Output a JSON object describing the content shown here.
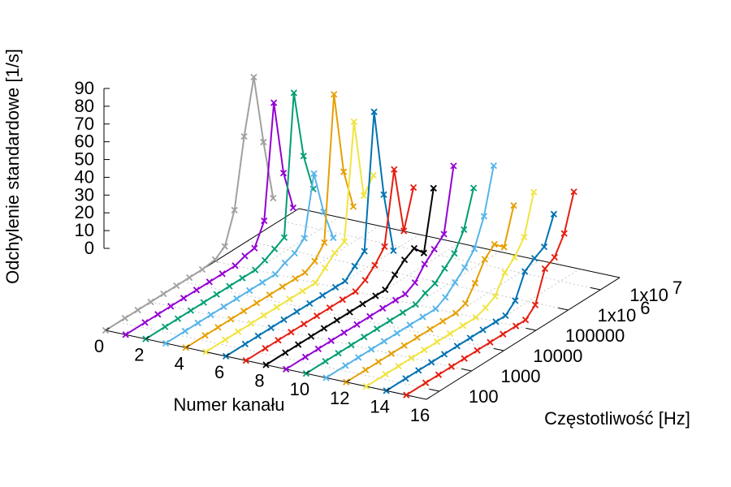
{
  "chart_data": {
    "type": "line",
    "projection": "3d",
    "title": "",
    "xlabel": "Numer kanału",
    "ylabel": "Częstotliwość [Hz]",
    "zlabel": "Odchylenie standardowe [1/s]",
    "x_ticks": [
      "0",
      "2",
      "4",
      "6",
      "8",
      "10",
      "12",
      "14",
      "16"
    ],
    "y_ticks": [
      "100",
      "1000",
      "10000",
      "100000",
      "1x10^6",
      "1x10^7"
    ],
    "y_tick_base": [
      "100",
      "1000",
      "10000",
      "100000",
      "1x10",
      "1x10"
    ],
    "y_tick_exp": [
      "",
      "",
      "",
      "",
      "6",
      "7"
    ],
    "z_ticks": [
      "0",
      "10",
      "20",
      "30",
      "40",
      "50",
      "60",
      "70",
      "80",
      "90"
    ],
    "xlim": [
      0,
      16
    ],
    "ylim_log10": [
      1.6,
      7.6
    ],
    "zlim": [
      0,
      90
    ],
    "grid": true,
    "legend": "none",
    "frequency_points_log10": [
      1.6,
      2.2,
      2.6,
      3.0,
      3.4,
      3.8,
      4.2,
      4.6,
      5.0,
      5.3,
      5.6,
      5.9,
      6.2,
      6.5,
      6.8
    ],
    "series": [
      {
        "channel": 0,
        "color": "#a0a0a0",
        "values": [
          0,
          0,
          0,
          0,
          0,
          0,
          0,
          0,
          1,
          5,
          22,
          60,
          90,
          50,
          15
        ]
      },
      {
        "channel": 1,
        "color": "#9400d3",
        "values": [
          0,
          0,
          0,
          0,
          0,
          0,
          0,
          0,
          0,
          2,
          3,
          15,
          78,
          35,
          12
        ]
      },
      {
        "channel": 2,
        "color": "#009e73",
        "values": [
          0,
          0,
          0,
          0,
          0,
          0,
          0,
          0,
          0,
          2,
          5,
          8,
          86,
          47,
          25
        ]
      },
      {
        "channel": 3,
        "color": "#56b4e9",
        "values": [
          0,
          0,
          0,
          0,
          0,
          0,
          0,
          0,
          0,
          3,
          5,
          10,
          43,
          18,
          0
        ]
      },
      {
        "channel": 4,
        "color": "#e69f00",
        "values": [
          0,
          0,
          0,
          0,
          0,
          0,
          0,
          0,
          0,
          0,
          3,
          10,
          90,
          43,
          20
        ]
      },
      {
        "channel": 5,
        "color": "#f0e442",
        "values": [
          0,
          0,
          0,
          0,
          0,
          0,
          0,
          0,
          0,
          5,
          10,
          13,
          77,
          32,
          40
        ]
      },
      {
        "channel": 6,
        "color": "#0072b2",
        "values": [
          0,
          0,
          0,
          0,
          0,
          0,
          0,
          0,
          0,
          0,
          5,
          10,
          85,
          35,
          0
        ]
      },
      {
        "channel": 7,
        "color": "#e51e10",
        "values": [
          0,
          0,
          0,
          0,
          0,
          0,
          0,
          0,
          0,
          3,
          8,
          15,
          55,
          17,
          38
        ]
      },
      {
        "channel": 8,
        "color": "#000000",
        "values": [
          0,
          0,
          0,
          0,
          0,
          0,
          0,
          0,
          0,
          0,
          5,
          10,
          13,
          7,
          40
        ]
      },
      {
        "channel": 9,
        "color": "#9400d3",
        "values": [
          0,
          0,
          0,
          0,
          0,
          0,
          0,
          0,
          0,
          0,
          3,
          10,
          15,
          20,
          55
        ]
      },
      {
        "channel": 10,
        "color": "#009e73",
        "values": [
          0,
          0,
          0,
          0,
          0,
          0,
          0,
          0,
          0,
          3,
          5,
          10,
          15,
          25,
          45
        ]
      },
      {
        "channel": 11,
        "color": "#56b4e9",
        "values": [
          0,
          0,
          0,
          0,
          0,
          0,
          0,
          0,
          0,
          3,
          8,
          13,
          20,
          35,
          60
        ]
      },
      {
        "channel": 12,
        "color": "#e69f00",
        "values": [
          0,
          0,
          0,
          0,
          0,
          0,
          0,
          0,
          0,
          2,
          10,
          20,
          25,
          20,
          40
        ]
      },
      {
        "channel": 13,
        "color": "#f0e442",
        "values": [
          0,
          0,
          0,
          0,
          0,
          0,
          0,
          0,
          0,
          2,
          5,
          15,
          20,
          28,
          50
        ]
      },
      {
        "channel": 14,
        "color": "#0072b2",
        "values": [
          0,
          0,
          0,
          0,
          0,
          0,
          0,
          0,
          0,
          0,
          5,
          18,
          22,
          25,
          40
        ]
      },
      {
        "channel": 15,
        "color": "#e51e10",
        "values": [
          0,
          0,
          0,
          0,
          0,
          0,
          0,
          0,
          0,
          0,
          5,
          22,
          25,
          35,
          55
        ]
      }
    ]
  }
}
